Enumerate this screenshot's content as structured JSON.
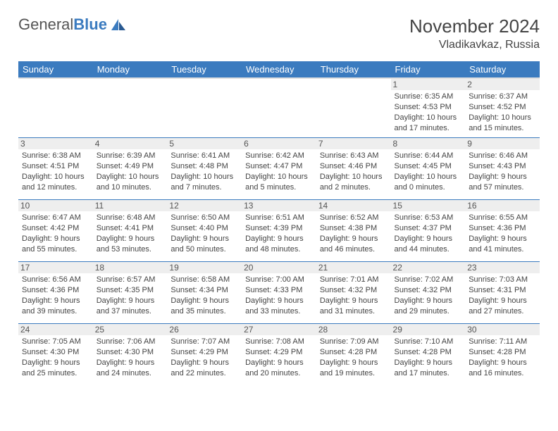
{
  "logo": {
    "general": "General",
    "blue": "Blue"
  },
  "title": "November 2024",
  "location": "Vladikavkaz, Russia",
  "colors": {
    "header_bg": "#3b7bbf",
    "header_text": "#ffffff",
    "border": "#3b7bbf",
    "daynum_bg": "#eeeeee",
    "text": "#444444"
  },
  "weekdays": [
    "Sunday",
    "Monday",
    "Tuesday",
    "Wednesday",
    "Thursday",
    "Friday",
    "Saturday"
  ],
  "weeks": [
    [
      {
        "blank": true
      },
      {
        "blank": true
      },
      {
        "blank": true
      },
      {
        "blank": true
      },
      {
        "blank": true
      },
      {
        "day": "1",
        "sunrise": "Sunrise: 6:35 AM",
        "sunset": "Sunset: 4:53 PM",
        "daylight1": "Daylight: 10 hours",
        "daylight2": "and 17 minutes."
      },
      {
        "day": "2",
        "sunrise": "Sunrise: 6:37 AM",
        "sunset": "Sunset: 4:52 PM",
        "daylight1": "Daylight: 10 hours",
        "daylight2": "and 15 minutes."
      }
    ],
    [
      {
        "day": "3",
        "sunrise": "Sunrise: 6:38 AM",
        "sunset": "Sunset: 4:51 PM",
        "daylight1": "Daylight: 10 hours",
        "daylight2": "and 12 minutes."
      },
      {
        "day": "4",
        "sunrise": "Sunrise: 6:39 AM",
        "sunset": "Sunset: 4:49 PM",
        "daylight1": "Daylight: 10 hours",
        "daylight2": "and 10 minutes."
      },
      {
        "day": "5",
        "sunrise": "Sunrise: 6:41 AM",
        "sunset": "Sunset: 4:48 PM",
        "daylight1": "Daylight: 10 hours",
        "daylight2": "and 7 minutes."
      },
      {
        "day": "6",
        "sunrise": "Sunrise: 6:42 AM",
        "sunset": "Sunset: 4:47 PM",
        "daylight1": "Daylight: 10 hours",
        "daylight2": "and 5 minutes."
      },
      {
        "day": "7",
        "sunrise": "Sunrise: 6:43 AM",
        "sunset": "Sunset: 4:46 PM",
        "daylight1": "Daylight: 10 hours",
        "daylight2": "and 2 minutes."
      },
      {
        "day": "8",
        "sunrise": "Sunrise: 6:44 AM",
        "sunset": "Sunset: 4:45 PM",
        "daylight1": "Daylight: 10 hours",
        "daylight2": "and 0 minutes."
      },
      {
        "day": "9",
        "sunrise": "Sunrise: 6:46 AM",
        "sunset": "Sunset: 4:43 PM",
        "daylight1": "Daylight: 9 hours",
        "daylight2": "and 57 minutes."
      }
    ],
    [
      {
        "day": "10",
        "sunrise": "Sunrise: 6:47 AM",
        "sunset": "Sunset: 4:42 PM",
        "daylight1": "Daylight: 9 hours",
        "daylight2": "and 55 minutes."
      },
      {
        "day": "11",
        "sunrise": "Sunrise: 6:48 AM",
        "sunset": "Sunset: 4:41 PM",
        "daylight1": "Daylight: 9 hours",
        "daylight2": "and 53 minutes."
      },
      {
        "day": "12",
        "sunrise": "Sunrise: 6:50 AM",
        "sunset": "Sunset: 4:40 PM",
        "daylight1": "Daylight: 9 hours",
        "daylight2": "and 50 minutes."
      },
      {
        "day": "13",
        "sunrise": "Sunrise: 6:51 AM",
        "sunset": "Sunset: 4:39 PM",
        "daylight1": "Daylight: 9 hours",
        "daylight2": "and 48 minutes."
      },
      {
        "day": "14",
        "sunrise": "Sunrise: 6:52 AM",
        "sunset": "Sunset: 4:38 PM",
        "daylight1": "Daylight: 9 hours",
        "daylight2": "and 46 minutes."
      },
      {
        "day": "15",
        "sunrise": "Sunrise: 6:53 AM",
        "sunset": "Sunset: 4:37 PM",
        "daylight1": "Daylight: 9 hours",
        "daylight2": "and 44 minutes."
      },
      {
        "day": "16",
        "sunrise": "Sunrise: 6:55 AM",
        "sunset": "Sunset: 4:36 PM",
        "daylight1": "Daylight: 9 hours",
        "daylight2": "and 41 minutes."
      }
    ],
    [
      {
        "day": "17",
        "sunrise": "Sunrise: 6:56 AM",
        "sunset": "Sunset: 4:36 PM",
        "daylight1": "Daylight: 9 hours",
        "daylight2": "and 39 minutes."
      },
      {
        "day": "18",
        "sunrise": "Sunrise: 6:57 AM",
        "sunset": "Sunset: 4:35 PM",
        "daylight1": "Daylight: 9 hours",
        "daylight2": "and 37 minutes."
      },
      {
        "day": "19",
        "sunrise": "Sunrise: 6:58 AM",
        "sunset": "Sunset: 4:34 PM",
        "daylight1": "Daylight: 9 hours",
        "daylight2": "and 35 minutes."
      },
      {
        "day": "20",
        "sunrise": "Sunrise: 7:00 AM",
        "sunset": "Sunset: 4:33 PM",
        "daylight1": "Daylight: 9 hours",
        "daylight2": "and 33 minutes."
      },
      {
        "day": "21",
        "sunrise": "Sunrise: 7:01 AM",
        "sunset": "Sunset: 4:32 PM",
        "daylight1": "Daylight: 9 hours",
        "daylight2": "and 31 minutes."
      },
      {
        "day": "22",
        "sunrise": "Sunrise: 7:02 AM",
        "sunset": "Sunset: 4:32 PM",
        "daylight1": "Daylight: 9 hours",
        "daylight2": "and 29 minutes."
      },
      {
        "day": "23",
        "sunrise": "Sunrise: 7:03 AM",
        "sunset": "Sunset: 4:31 PM",
        "daylight1": "Daylight: 9 hours",
        "daylight2": "and 27 minutes."
      }
    ],
    [
      {
        "day": "24",
        "sunrise": "Sunrise: 7:05 AM",
        "sunset": "Sunset: 4:30 PM",
        "daylight1": "Daylight: 9 hours",
        "daylight2": "and 25 minutes."
      },
      {
        "day": "25",
        "sunrise": "Sunrise: 7:06 AM",
        "sunset": "Sunset: 4:30 PM",
        "daylight1": "Daylight: 9 hours",
        "daylight2": "and 24 minutes."
      },
      {
        "day": "26",
        "sunrise": "Sunrise: 7:07 AM",
        "sunset": "Sunset: 4:29 PM",
        "daylight1": "Daylight: 9 hours",
        "daylight2": "and 22 minutes."
      },
      {
        "day": "27",
        "sunrise": "Sunrise: 7:08 AM",
        "sunset": "Sunset: 4:29 PM",
        "daylight1": "Daylight: 9 hours",
        "daylight2": "and 20 minutes."
      },
      {
        "day": "28",
        "sunrise": "Sunrise: 7:09 AM",
        "sunset": "Sunset: 4:28 PM",
        "daylight1": "Daylight: 9 hours",
        "daylight2": "and 19 minutes."
      },
      {
        "day": "29",
        "sunrise": "Sunrise: 7:10 AM",
        "sunset": "Sunset: 4:28 PM",
        "daylight1": "Daylight: 9 hours",
        "daylight2": "and 17 minutes."
      },
      {
        "day": "30",
        "sunrise": "Sunrise: 7:11 AM",
        "sunset": "Sunset: 4:28 PM",
        "daylight1": "Daylight: 9 hours",
        "daylight2": "and 16 minutes."
      }
    ]
  ]
}
